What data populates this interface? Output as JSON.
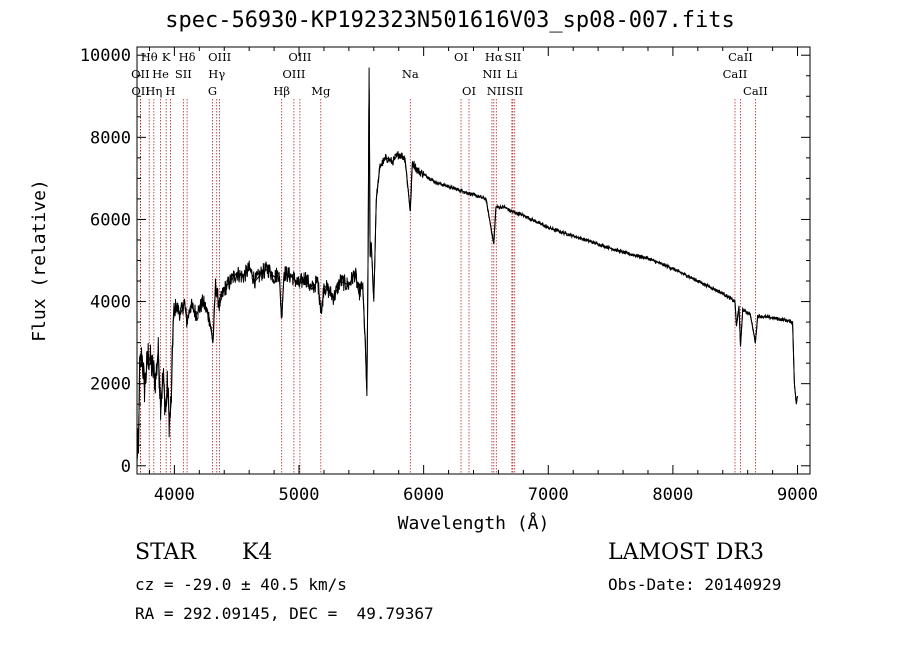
{
  "header": {
    "title": "spec-56930-KP192323N501616V03_sp08-007.fits"
  },
  "info": {
    "class": "STAR",
    "subclass": "K4",
    "survey": "LAMOST DR3",
    "cz": "cz = -29.0 ± 40.5 km/s",
    "obs_date": "Obs-Date: 20140929",
    "coords": "RA = 292.09145, DEC =  49.79367"
  },
  "chart_data": {
    "type": "line",
    "title": "spec-56930-KP192323N501616V03_sp08-007.fits",
    "xlabel": "Wavelength (Å)",
    "ylabel": "Flux (relative)",
    "xlim": [
      3700,
      9100
    ],
    "ylim": [
      -200,
      10200
    ],
    "xticks": [
      4000,
      5000,
      6000,
      7000,
      8000,
      9000
    ],
    "yticks": [
      0,
      2000,
      4000,
      6000,
      8000,
      10000
    ],
    "colors": {
      "spectrum": "#000000",
      "lines": "#b22222",
      "axes": "#000000"
    },
    "spectrum_anchors": [
      [
        3700,
        0
      ],
      [
        3705,
        700
      ],
      [
        3712,
        300
      ],
      [
        3720,
        2300
      ],
      [
        3740,
        2700
      ],
      [
        3760,
        1900
      ],
      [
        3790,
        2700
      ],
      [
        3820,
        2400
      ],
      [
        3850,
        2100
      ],
      [
        3870,
        2800
      ],
      [
        3890,
        1500
      ],
      [
        3910,
        2200
      ],
      [
        3930,
        1300
      ],
      [
        3945,
        2000
      ],
      [
        3960,
        1000
      ],
      [
        3975,
        1600
      ],
      [
        3990,
        3500
      ],
      [
        4010,
        3900
      ],
      [
        4050,
        3700
      ],
      [
        4080,
        4000
      ],
      [
        4100,
        3500
      ],
      [
        4130,
        3900
      ],
      [
        4180,
        3700
      ],
      [
        4230,
        4000
      ],
      [
        4280,
        3600
      ],
      [
        4310,
        3000
      ],
      [
        4330,
        4400
      ],
      [
        4360,
        3900
      ],
      [
        4400,
        4300
      ],
      [
        4450,
        4500
      ],
      [
        4500,
        4700
      ],
      [
        4550,
        4600
      ],
      [
        4600,
        4800
      ],
      [
        4650,
        4500
      ],
      [
        4700,
        4700
      ],
      [
        4750,
        4800
      ],
      [
        4800,
        4600
      ],
      [
        4840,
        4700
      ],
      [
        4860,
        3600
      ],
      [
        4880,
        4700
      ],
      [
        4950,
        4600
      ],
      [
        5000,
        4400
      ],
      [
        5050,
        4600
      ],
      [
        5100,
        4300
      ],
      [
        5150,
        4500
      ],
      [
        5180,
        3700
      ],
      [
        5200,
        4400
      ],
      [
        5280,
        4100
      ],
      [
        5330,
        4500
      ],
      [
        5400,
        4400
      ],
      [
        5450,
        4700
      ],
      [
        5480,
        4200
      ],
      [
        5510,
        4400
      ],
      [
        5530,
        3100
      ],
      [
        5545,
        1700
      ],
      [
        5555,
        5500
      ],
      [
        5562,
        9700
      ],
      [
        5570,
        5100
      ],
      [
        5580,
        5400
      ],
      [
        5600,
        4000
      ],
      [
        5620,
        6500
      ],
      [
        5650,
        7300
      ],
      [
        5700,
        7500
      ],
      [
        5750,
        7400
      ],
      [
        5800,
        7600
      ],
      [
        5850,
        7500
      ],
      [
        5893,
        6200
      ],
      [
        5910,
        7400
      ],
      [
        5950,
        7200
      ],
      [
        6000,
        7100
      ],
      [
        6100,
        6900
      ],
      [
        6200,
        6800
      ],
      [
        6300,
        6700
      ],
      [
        6400,
        6600
      ],
      [
        6500,
        6500
      ],
      [
        6563,
        5400
      ],
      [
        6580,
        6300
      ],
      [
        6650,
        6300
      ],
      [
        6700,
        6200
      ],
      [
        6800,
        6100
      ],
      [
        6900,
        5950
      ],
      [
        7000,
        5800
      ],
      [
        7200,
        5600
      ],
      [
        7400,
        5400
      ],
      [
        7600,
        5200
      ],
      [
        7800,
        5050
      ],
      [
        8000,
        4800
      ],
      [
        8200,
        4500
      ],
      [
        8400,
        4200
      ],
      [
        8498,
        4000
      ],
      [
        8510,
        3400
      ],
      [
        8530,
        3900
      ],
      [
        8542,
        2900
      ],
      [
        8560,
        3800
      ],
      [
        8620,
        3700
      ],
      [
        8662,
        3000
      ],
      [
        8680,
        3650
      ],
      [
        8800,
        3600
      ],
      [
        8900,
        3550
      ],
      [
        8960,
        3500
      ],
      [
        8975,
        2000
      ],
      [
        8990,
        1500
      ],
      [
        9000,
        1700
      ]
    ],
    "spectral_lines": [
      {
        "label": "Hθ",
        "wavelength": 3798,
        "row": 0
      },
      {
        "label": "K",
        "wavelength": 3934,
        "row": 0
      },
      {
        "label": "Hδ",
        "wavelength": 4102,
        "row": 0
      },
      {
        "label": "OIII",
        "wavelength": 4363,
        "row": 0
      },
      {
        "label": "OIII",
        "wavelength": 5007,
        "row": 0
      },
      {
        "label": "OI",
        "wavelength": 6300,
        "row": 0
      },
      {
        "label": "Hα",
        "wavelength": 6563,
        "row": 0
      },
      {
        "label": "SII",
        "wavelength": 6716,
        "row": 0
      },
      {
        "label": "CaII",
        "wavelength": 8542,
        "row": 0
      },
      {
        "label": "OII",
        "wavelength": 3727,
        "row": 1
      },
      {
        "label": "He",
        "wavelength": 3889,
        "row": 1
      },
      {
        "label": "SII",
        "wavelength": 4072,
        "row": 1
      },
      {
        "label": "Hγ",
        "wavelength": 4340,
        "row": 1
      },
      {
        "label": "OIII",
        "wavelength": 4959,
        "row": 1
      },
      {
        "label": "Na",
        "wavelength": 5893,
        "row": 1
      },
      {
        "label": "NII",
        "wavelength": 6548,
        "row": 1
      },
      {
        "label": "Li",
        "wavelength": 6708,
        "row": 1
      },
      {
        "label": "CaII",
        "wavelength": 8498,
        "row": 1
      },
      {
        "label": "OII",
        "wavelength": 3729,
        "row": 2
      },
      {
        "label": "Hη",
        "wavelength": 3835,
        "row": 2
      },
      {
        "label": "H",
        "wavelength": 3968,
        "row": 2
      },
      {
        "label": "G",
        "wavelength": 4306,
        "row": 2
      },
      {
        "label": "Hβ",
        "wavelength": 4861,
        "row": 2
      },
      {
        "label": "Mg",
        "wavelength": 5175,
        "row": 2
      },
      {
        "label": "OI",
        "wavelength": 6364,
        "row": 2
      },
      {
        "label": "NII",
        "wavelength": 6583,
        "row": 2
      },
      {
        "label": "SII",
        "wavelength": 6731,
        "row": 2
      },
      {
        "label": "CaII",
        "wavelength": 8662,
        "row": 2
      }
    ]
  }
}
